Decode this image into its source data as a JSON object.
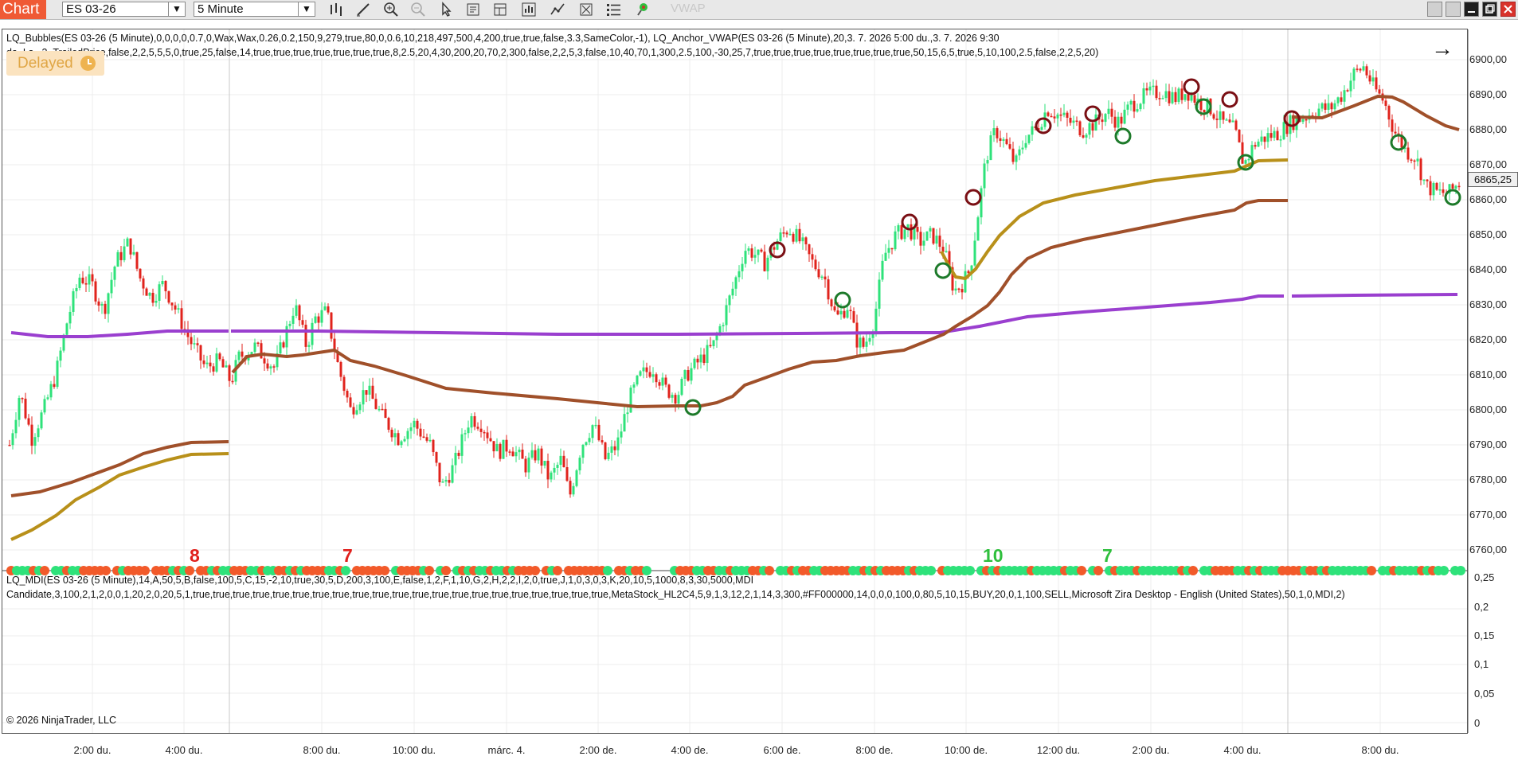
{
  "toolbar": {
    "chart_tab": "Chart",
    "instrument": "ES 03-26",
    "interval": "5 Minute",
    "vwap_label": "VWAP"
  },
  "indicators": {
    "line1": "LQ_Bubbles(ES 03-26 (5 Minute),0,0,0,0,0.7,0,Wax,Wax,0.26,0.2,150,9,279,true,80,0,0.6,10,218,497,500,4,200,true,true,false,3.3,SameColor,-1), LQ_Anchor_VWAP(ES 03-26 (5 Minute),20,3. 7. 2026 5:00 du.,3. 7. 2026 9:30",
    "line2": "da_Ls...3_TrailedPrice,false,2,2,5,5,5,0,true,25,false,14,true,true,true,true,true,true,true,8,2.5,20,4,30,200,20,70,2,300,false,2,2,5,3,false,10,40,70,1,300,2.5,100,-30,25,7,true,true,true,true,true,true,true,true,50,15,6,5,true,5,10,100,2.5,false,2,2,5,20)",
    "mdi_line1": "LQ_MDI(ES 03-26 (5 Minute),14,A,50,5,B,false,100,5,C,15,-2,10,true,30,5,D,200,3,100,E,false,1,2,F,1,10,G,2,H,2,2,I,2,0,true,J,1,0,3,0,3,K,20,10,5,1000,8,3,30,5000,MDI",
    "mdi_line2": "Candidate,3,100,2,1,2,0,0,1,20,2,0,20,5,1,true,true,true,true,true,true,true,true,true,true,true,true,true,true,true,true,true,true,true,true,true,MetaStock_HL2C4,5,9,1,3,12,2,1,14,3,300,#FF000000,14,0,0,0,100,0,80,5,10,15,BUY,20,0,1,100,SELL,Microsoft Zira Desktop - English (United States),50,1,0,MDI,2)"
  },
  "status": {
    "delayed": "Delayed",
    "copyright": "© 2026 NinjaTrader, LLC",
    "last_price": "6865,25"
  },
  "price_axis": [
    "6900,00",
    "6890,00",
    "6880,00",
    "6870,00",
    "6860,00",
    "6850,00",
    "6840,00",
    "6830,00",
    "6820,00",
    "6810,00",
    "6800,00",
    "6790,00",
    "6780,00",
    "6770,00",
    "6760,00"
  ],
  "mdi_axis": [
    "0,25",
    "0,2",
    "0,15",
    "0,1",
    "0,05",
    "0"
  ],
  "time_axis": [
    "2:00 du.",
    "4:00 du.",
    "8:00 du.",
    "10:00 du.",
    "márc. 4.",
    "2:00 de.",
    "4:00 de.",
    "6:00 de.",
    "8:00 de.",
    "10:00 de.",
    "12:00 du.",
    "2:00 du.",
    "4:00 du.",
    "8:00 du."
  ],
  "counts": [
    {
      "text": "8",
      "color": "#e0201c"
    },
    {
      "text": "7",
      "color": "#e0201c"
    },
    {
      "text": "10",
      "color": "#2fbf3d"
    },
    {
      "text": "7",
      "color": "#2fbf3d"
    }
  ],
  "colors": {
    "up_candle": "#2ee27a",
    "down_candle": "#e0231c",
    "vwap_purple": "#9a3fcf",
    "anchor_brown": "#a0502a",
    "anchor_gold": "#b8901a",
    "bubble_dark_red": "#7a0f14",
    "bubble_green": "#1d7a2a",
    "accent": "#ef5a35"
  }
}
